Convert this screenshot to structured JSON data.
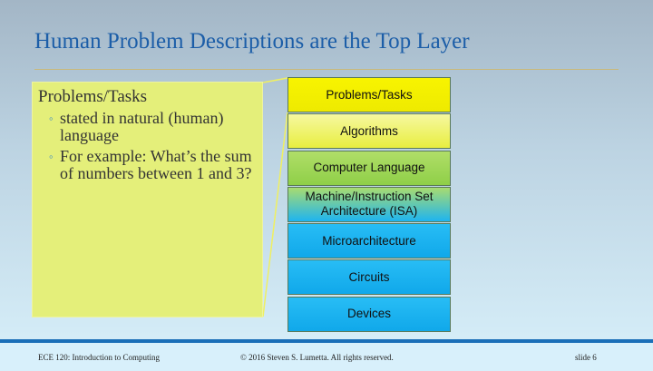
{
  "title": "Human Problem Descriptions are the Top Layer",
  "callout": {
    "heading": "Problems/Tasks",
    "bullets": [
      "stated in natural (human) language",
      "For example: What’s the sum of numbers between 1 and 3?"
    ]
  },
  "layers": [
    {
      "label": "Problems/Tasks",
      "color": "#f5f000"
    },
    {
      "label": "Algorithms",
      "color": "#eef25a"
    },
    {
      "label": "Computer Language",
      "color": "#a2d95a"
    },
    {
      "label": "Machine/Instruction Set Architecture (ISA)",
      "color": "#6ccfc0"
    },
    {
      "label": "Microarchitecture",
      "color": "#1eb4f0"
    },
    {
      "label": "Circuits",
      "color": "#1eb4f0"
    },
    {
      "label": "Devices",
      "color": "#1eb4f0"
    }
  ],
  "footer": {
    "course": "ECE 120: Introduction to Computing",
    "copyright": "© 2016 Steven S. Lumetta.  All rights reserved.",
    "slide": "slide 6"
  }
}
